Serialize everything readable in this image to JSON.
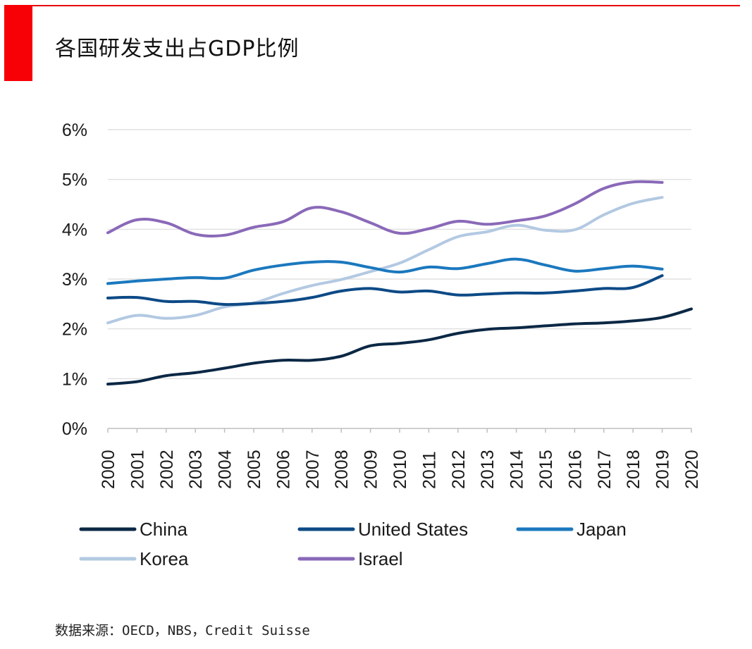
{
  "page": {
    "title": "各国研发支出占GDP比例",
    "source": "数据来源：OECD，NBS，Credit Suisse"
  },
  "colors": {
    "accent": "#f70006",
    "grid": "#d9d9d9",
    "axis": "#bfbfbf",
    "text": "#1a1a1a"
  },
  "chart_data": {
    "type": "line",
    "title": "各国研发支出占GDP比例",
    "xlabel": "",
    "ylabel": "",
    "ylim": [
      0,
      6
    ],
    "yticks": [
      {
        "value": 0,
        "label": "0%"
      },
      {
        "value": 1,
        "label": "1%"
      },
      {
        "value": 2,
        "label": "2%"
      },
      {
        "value": 3,
        "label": "3%"
      },
      {
        "value": 4,
        "label": "4%"
      },
      {
        "value": 5,
        "label": "5%"
      },
      {
        "value": 6,
        "label": "6%"
      }
    ],
    "x": [
      "2000",
      "2001",
      "2002",
      "2003",
      "2004",
      "2005",
      "2006",
      "2007",
      "2008",
      "2009",
      "2010",
      "2011",
      "2012",
      "2013",
      "2014",
      "2015",
      "2016",
      "2017",
      "2018",
      "2019",
      "2020"
    ],
    "grid": true,
    "legend_position": "bottom",
    "series": [
      {
        "name": "China",
        "color": "#0b2845",
        "values": [
          0.89,
          0.94,
          1.06,
          1.12,
          1.21,
          1.31,
          1.37,
          1.37,
          1.45,
          1.66,
          1.71,
          1.78,
          1.91,
          1.99,
          2.02,
          2.06,
          2.1,
          2.12,
          2.16,
          2.23,
          2.4
        ]
      },
      {
        "name": "United States",
        "color": "#0d4a86",
        "values": [
          2.62,
          2.63,
          2.55,
          2.55,
          2.49,
          2.51,
          2.55,
          2.63,
          2.76,
          2.81,
          2.74,
          2.76,
          2.68,
          2.7,
          2.72,
          2.72,
          2.76,
          2.81,
          2.83,
          3.07,
          null
        ]
      },
      {
        "name": "Japan",
        "color": "#1b78be",
        "values": [
          2.91,
          2.96,
          3.0,
          3.03,
          3.02,
          3.18,
          3.28,
          3.34,
          3.34,
          3.23,
          3.14,
          3.24,
          3.21,
          3.31,
          3.4,
          3.28,
          3.16,
          3.21,
          3.26,
          3.2,
          null
        ]
      },
      {
        "name": "Korea",
        "color": "#b3c9e2",
        "values": [
          2.12,
          2.27,
          2.21,
          2.27,
          2.44,
          2.52,
          2.71,
          2.87,
          2.99,
          3.15,
          3.32,
          3.59,
          3.85,
          3.95,
          4.08,
          3.98,
          3.99,
          4.29,
          4.52,
          4.64,
          null
        ]
      },
      {
        "name": "Israel",
        "color": "#8a69b8",
        "values": [
          3.93,
          4.19,
          4.13,
          3.9,
          3.88,
          4.04,
          4.15,
          4.43,
          4.35,
          4.13,
          3.92,
          4.01,
          4.16,
          4.1,
          4.17,
          4.27,
          4.51,
          4.82,
          4.95,
          4.94,
          null
        ]
      }
    ]
  }
}
